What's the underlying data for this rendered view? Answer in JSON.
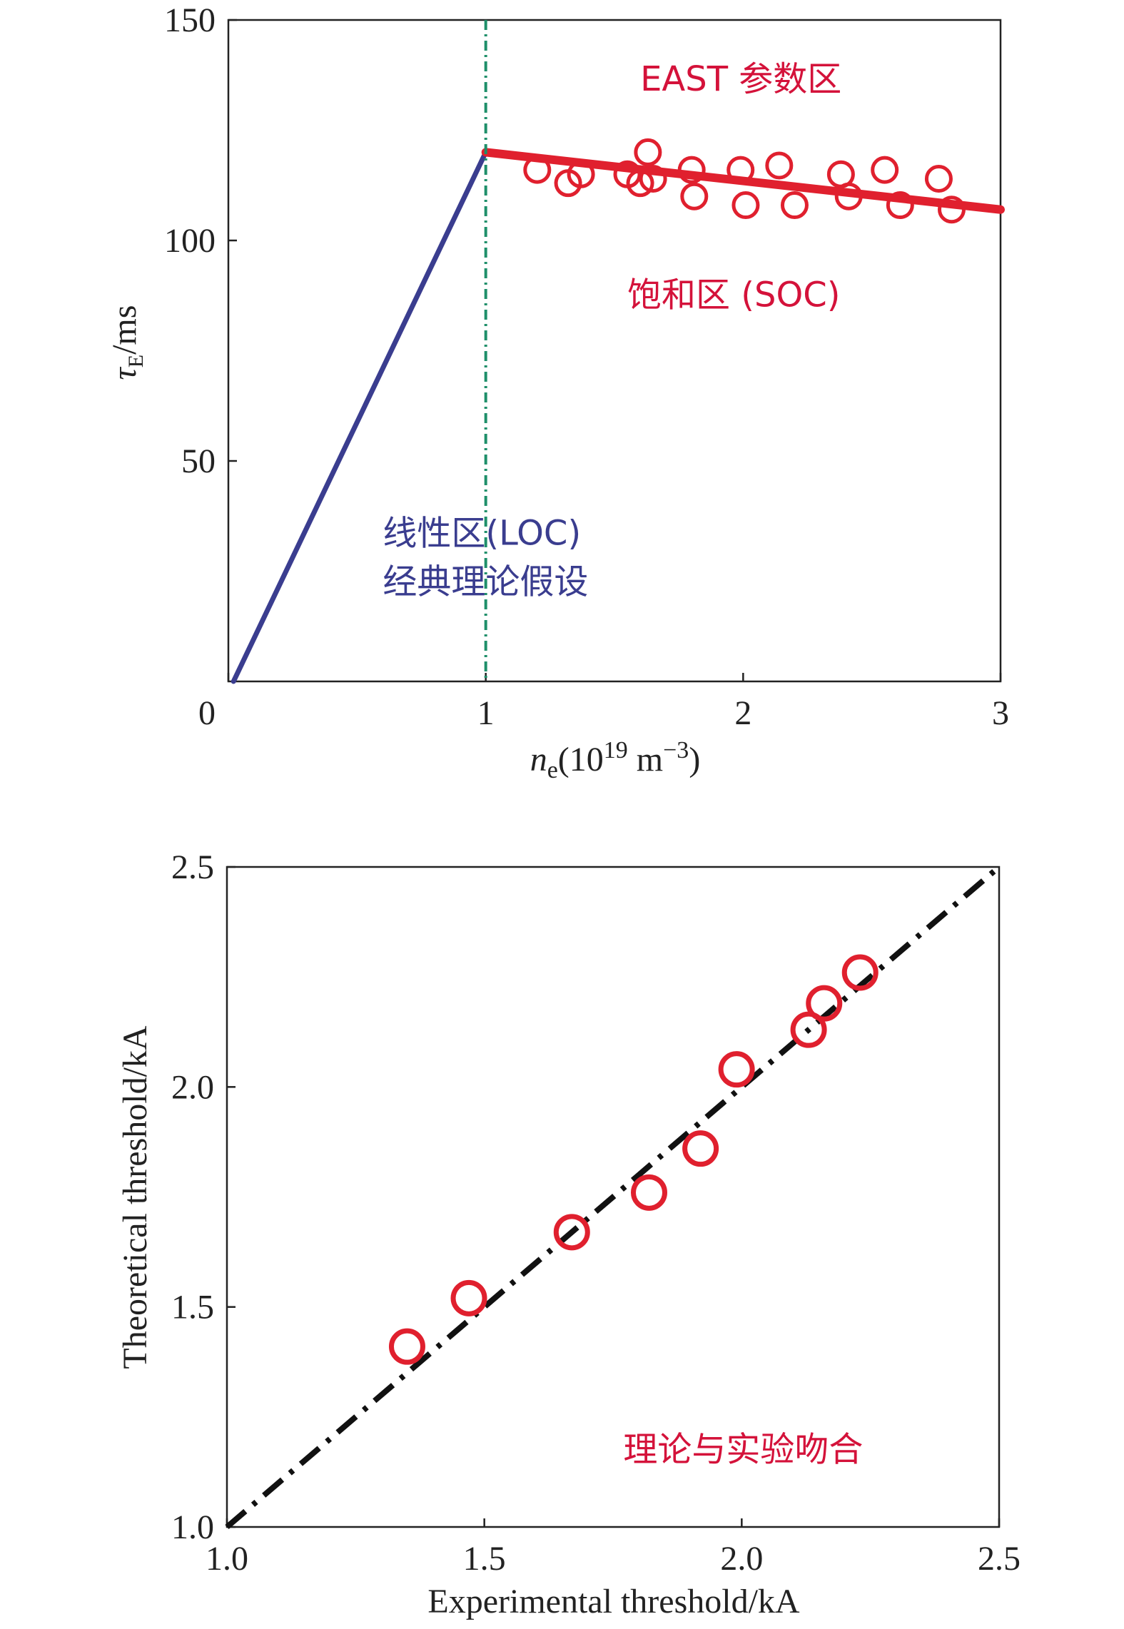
{
  "colors": {
    "axis": "#222222",
    "red": "#e0202e",
    "blue": "#3a3d8f",
    "green": "#1f8f6a",
    "black": "#111111",
    "annotation_red": "#d4123a",
    "annotation_blue": "#3a3d8f"
  },
  "chart_data": [
    {
      "type": "line",
      "xlabel_base": "n",
      "xlabel_sub": "e",
      "xlabel_rest": "(10",
      "xlabel_sup1": "19",
      "xlabel_unit": " m",
      "xlabel_sup2": "−3",
      "xlabel_close": ")",
      "ylabel_base": "τ",
      "ylabel_sub": "E",
      "ylabel_rest": "/ms",
      "xlim": [
        0,
        3
      ],
      "ylim": [
        0,
        150
      ],
      "x_ticks": [
        0,
        1,
        2,
        3
      ],
      "x_tick_labels": [
        "0",
        "1",
        "2",
        "3"
      ],
      "y_ticks": [
        50,
        100,
        150
      ],
      "y_tick_labels": [
        "50",
        "100",
        "150"
      ],
      "series": [
        {
          "kind": "line",
          "color_key": "blue",
          "x": [
            0.02,
            1.0
          ],
          "y": [
            0,
            120
          ]
        },
        {
          "kind": "line",
          "color_key": "red",
          "x": [
            1.0,
            3.0
          ],
          "y": [
            120,
            107
          ]
        },
        {
          "kind": "vline",
          "color_key": "green",
          "x": 1.0
        },
        {
          "kind": "scatter",
          "color_key": "red",
          "points": [
            [
              1.2,
              116
            ],
            [
              1.32,
              113
            ],
            [
              1.37,
              115
            ],
            [
              1.55,
              115
            ],
            [
              1.6,
              113
            ],
            [
              1.63,
              120
            ],
            [
              1.65,
              114
            ],
            [
              1.8,
              116
            ],
            [
              1.81,
              110
            ],
            [
              1.99,
              116
            ],
            [
              2.01,
              108
            ],
            [
              2.14,
              117
            ],
            [
              2.2,
              108
            ],
            [
              2.38,
              115
            ],
            [
              2.41,
              110
            ],
            [
              2.55,
              116
            ],
            [
              2.61,
              108
            ],
            [
              2.76,
              114
            ],
            [
              2.81,
              107
            ]
          ]
        }
      ],
      "annotations": [
        {
          "text": "EAST 参数区",
          "color_key": "annotation_red",
          "x": 1.6,
          "y": 134
        },
        {
          "text": "饱和区 (SOC)",
          "color_key": "annotation_red",
          "x": 1.55,
          "y": 85
        },
        {
          "text": "线性区(LOC)",
          "color_key": "annotation_blue",
          "x": 0.6,
          "y": 31
        },
        {
          "text": "经典理论假设",
          "color_key": "annotation_blue",
          "x": 0.6,
          "y": 20
        }
      ]
    },
    {
      "type": "scatter",
      "xlabel": "Experimental threshold/kA",
      "ylabel": "Theoretical threshold/kA",
      "xlim": [
        1.0,
        2.5
      ],
      "ylim": [
        1.0,
        2.5
      ],
      "x_ticks": [
        1.0,
        1.5,
        2.0,
        2.5
      ],
      "x_tick_labels": [
        "1.0",
        "1.5",
        "2.0",
        "2.5"
      ],
      "y_ticks": [
        1.0,
        1.5,
        2.0,
        2.5
      ],
      "y_tick_labels": [
        "1.0",
        "1.5",
        "2.0",
        "2.5"
      ],
      "series": [
        {
          "kind": "dashed_line",
          "color_key": "black",
          "x": [
            1.0,
            2.5
          ],
          "y": [
            1.0,
            2.5
          ]
        },
        {
          "kind": "scatter",
          "color_key": "red",
          "points": [
            [
              1.35,
              1.41
            ],
            [
              1.47,
              1.52
            ],
            [
              1.67,
              1.67
            ],
            [
              1.82,
              1.76
            ],
            [
              1.92,
              1.86
            ],
            [
              1.99,
              2.04
            ],
            [
              2.13,
              2.13
            ],
            [
              2.16,
              2.19
            ],
            [
              2.23,
              2.26
            ]
          ]
        }
      ],
      "annotations": [
        {
          "text": "理论与实验吻合",
          "color_key": "annotation_red",
          "x": 1.77,
          "y": 1.15
        }
      ]
    }
  ]
}
